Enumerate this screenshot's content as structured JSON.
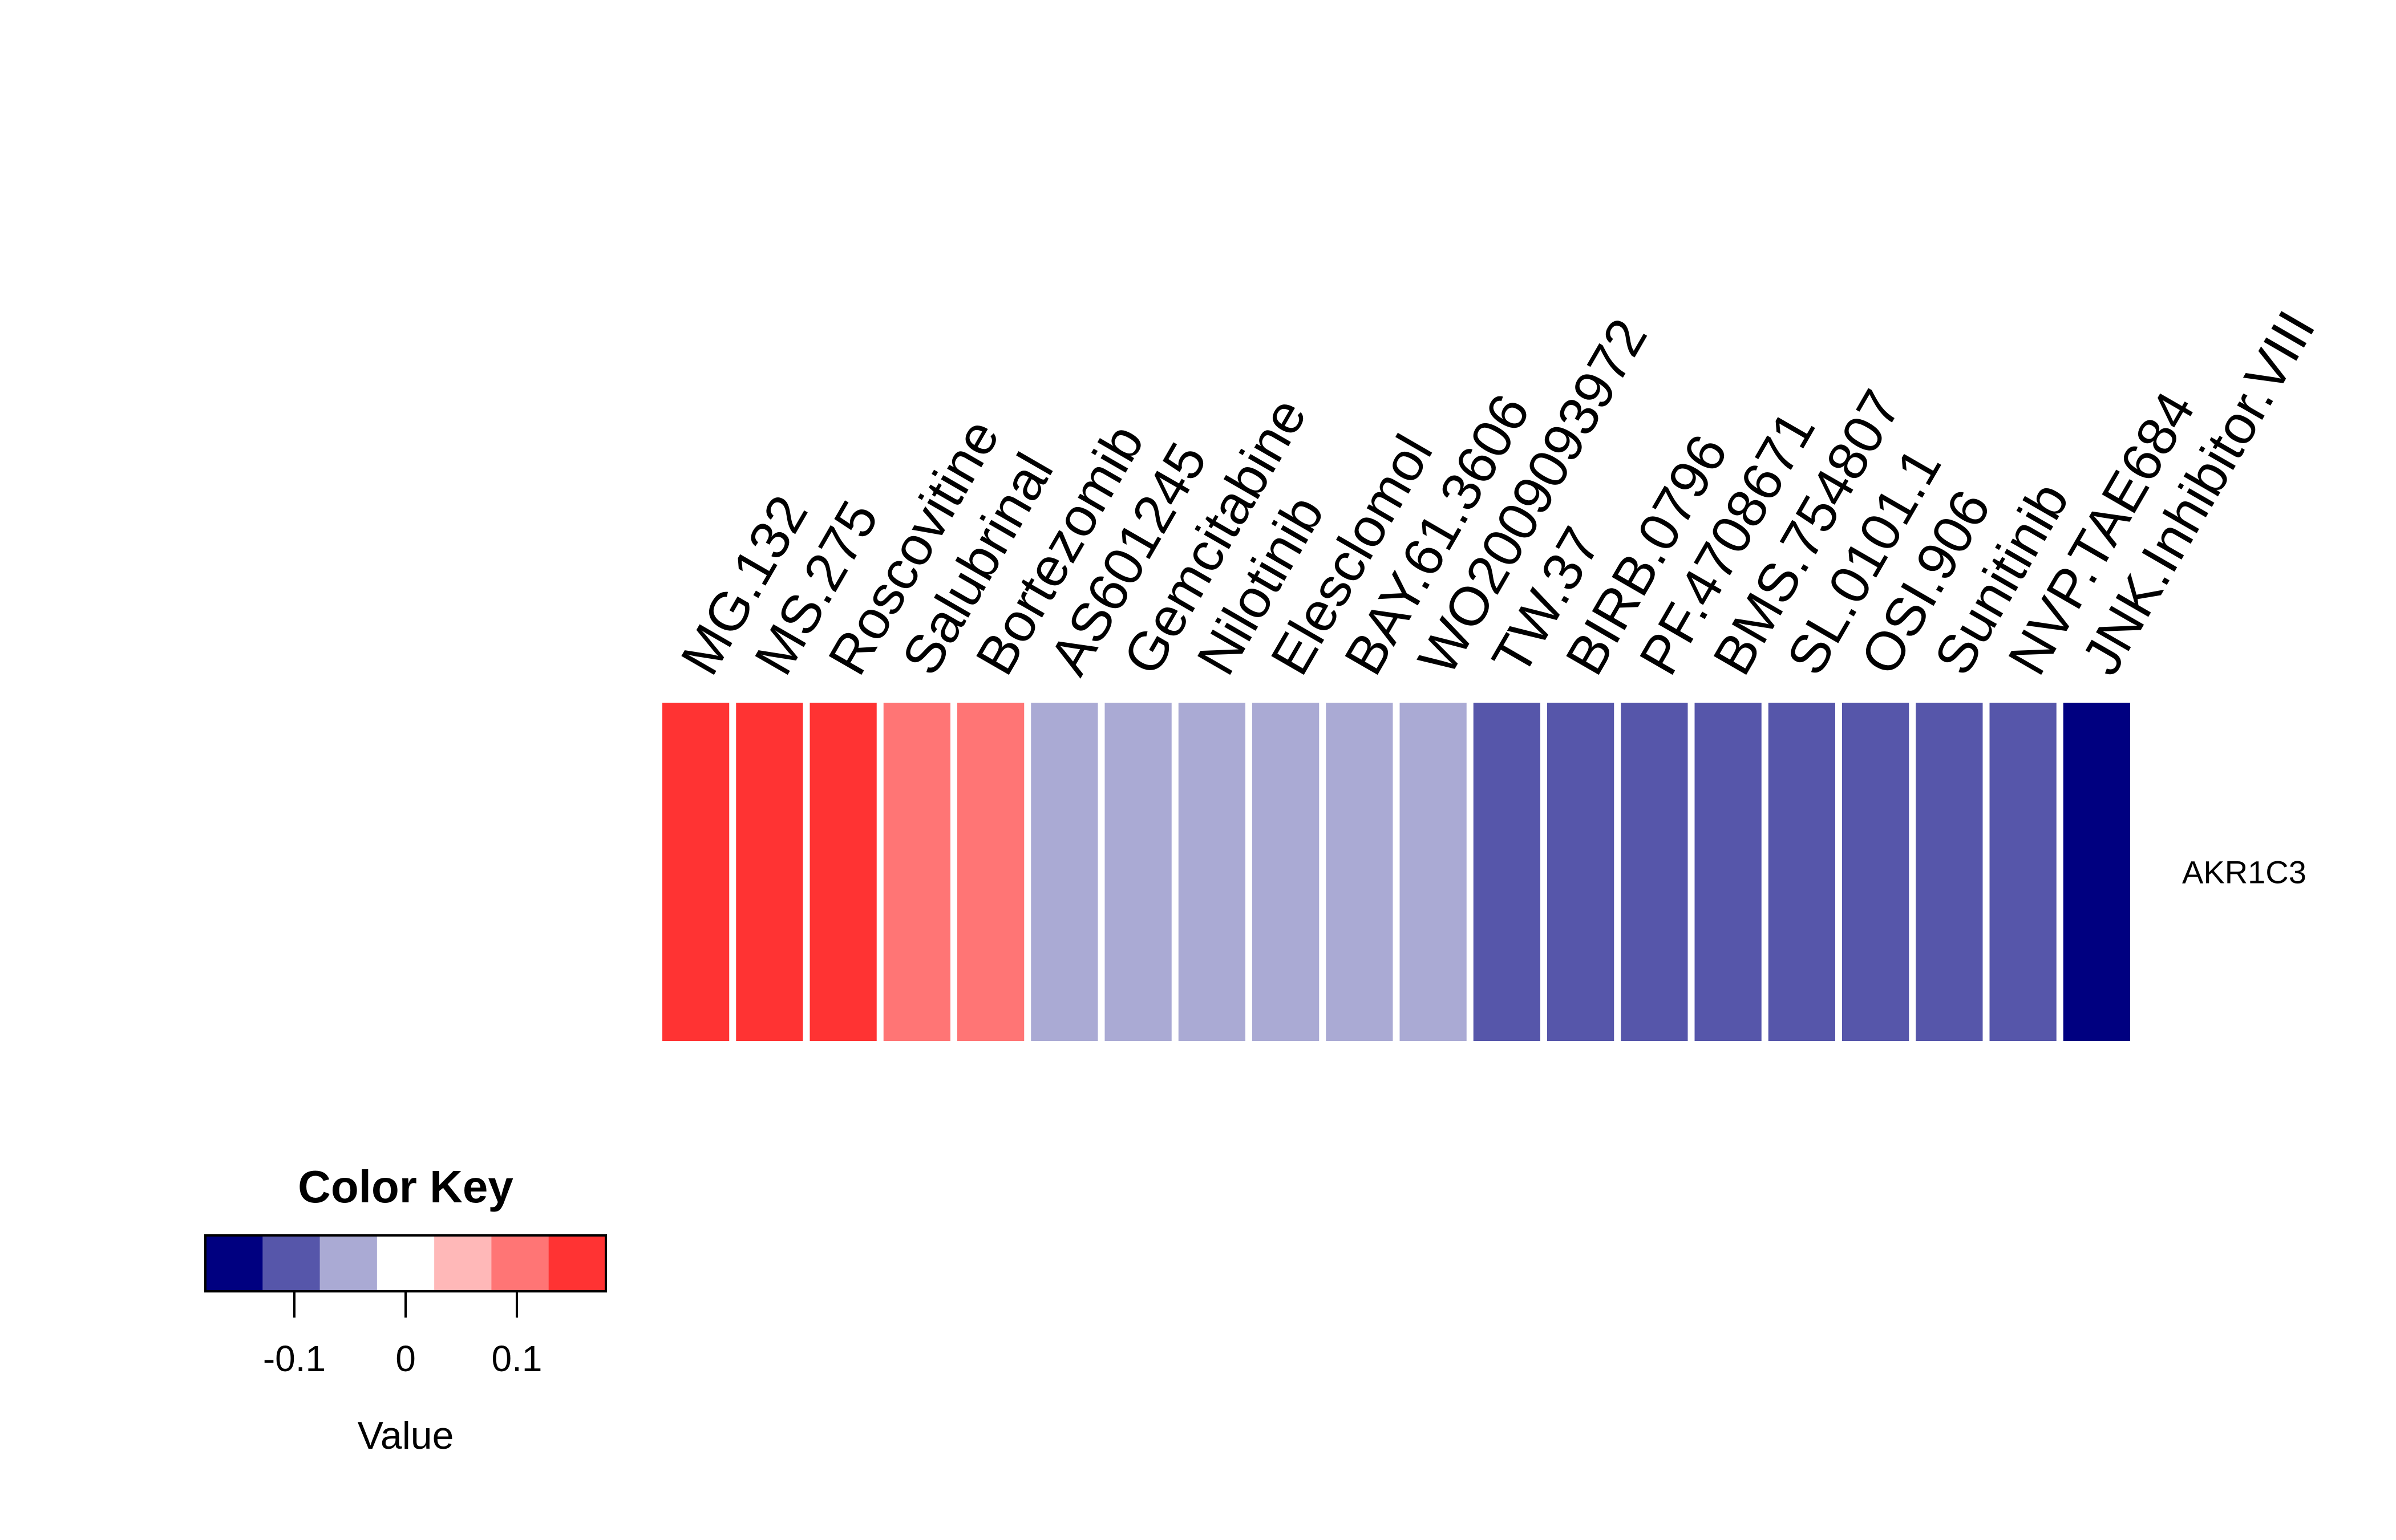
{
  "chart_data": {
    "type": "heatmap",
    "rows": [
      "AKR1C3"
    ],
    "columns": [
      "MG.132",
      "MS.275",
      "Roscovitine",
      "Salubrinal",
      "Bortezomib",
      "AS601245",
      "Gemcitabine",
      "Nilotinib",
      "Elesclomol",
      "BAY.61.3606",
      "WO2009093972",
      "TW.37",
      "BIRB.0796",
      "PF.4708671",
      "BMS.754807",
      "SL.0101.1",
      "OSI.906",
      "Sunitinib",
      "NVP.TAE684",
      "JNK.Inhibitor.VIII"
    ],
    "values": [
      [
        0.15,
        0.15,
        0.15,
        0.1,
        0.1,
        -0.05,
        -0.05,
        -0.05,
        -0.05,
        -0.05,
        -0.05,
        -0.1,
        -0.1,
        -0.1,
        -0.1,
        -0.1,
        -0.1,
        -0.1,
        -0.1,
        -0.15
      ]
    ],
    "color_key": {
      "title": "Color Key",
      "xlabel": "Value",
      "range": [
        -0.18,
        0.18
      ],
      "breaks": [
        -0.18,
        -0.12857,
        -0.07714,
        -0.02571,
        0.02571,
        0.07714,
        0.12857,
        0.18
      ],
      "colors": [
        "#000080",
        "#5656AA",
        "#AAAAD4",
        "#FFFFFF",
        "#FFB8B8",
        "#FF7575",
        "#FF3333"
      ],
      "ticks": [
        -0.1,
        0,
        0.1
      ],
      "tick_labels": [
        "-0.1",
        "0",
        "0.1"
      ]
    }
  }
}
